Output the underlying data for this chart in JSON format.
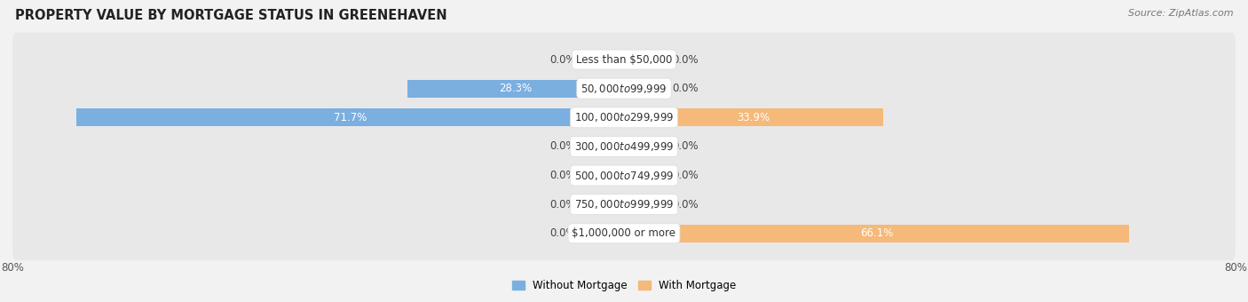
{
  "title": "PROPERTY VALUE BY MORTGAGE STATUS IN GREENEHAVEN",
  "source": "Source: ZipAtlas.com",
  "categories": [
    "Less than $50,000",
    "$50,000 to $99,999",
    "$100,000 to $299,999",
    "$300,000 to $499,999",
    "$500,000 to $749,999",
    "$750,000 to $999,999",
    "$1,000,000 or more"
  ],
  "without_mortgage": [
    0.0,
    28.3,
    71.7,
    0.0,
    0.0,
    0.0,
    0.0
  ],
  "with_mortgage": [
    0.0,
    0.0,
    33.9,
    0.0,
    0.0,
    0.0,
    66.1
  ],
  "color_without": "#7aafe0",
  "color_without_stub": "#b8d4ee",
  "color_with": "#f5b97a",
  "color_with_stub": "#f5d9b8",
  "axis_limit": 80.0,
  "xlim": [
    -80.0,
    80.0
  ],
  "bg_color": "#f2f2f2",
  "row_bg_color": "#e8e8e8",
  "bar_height": 0.62,
  "stub_size": 5.5,
  "title_fontsize": 10.5,
  "source_fontsize": 8,
  "label_fontsize": 8.5,
  "category_fontsize": 8.5,
  "legend_fontsize": 8.5,
  "axis_label_fontsize": 8.5
}
